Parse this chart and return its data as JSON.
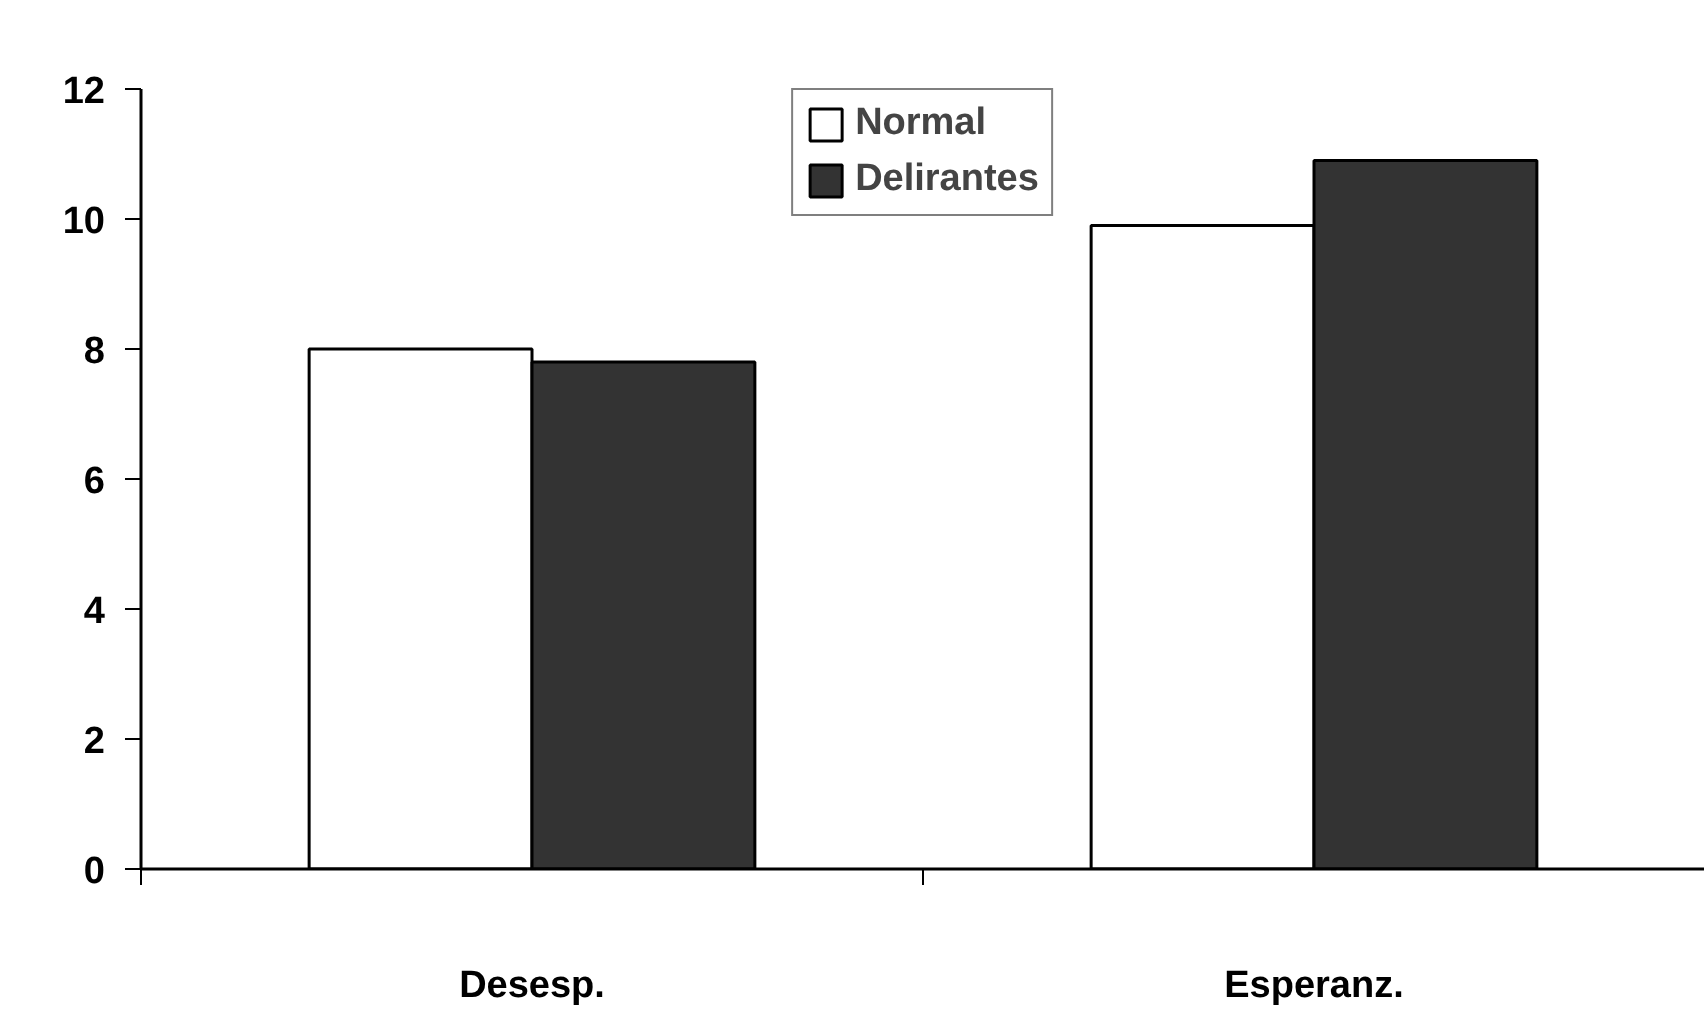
{
  "chart_data": {
    "type": "bar",
    "categories": [
      "Desesp.",
      "Esperanz."
    ],
    "series": [
      {
        "name": "Normal",
        "color": "#ffffff",
        "values": [
          8.0,
          9.9
        ]
      },
      {
        "name": "Delirantes",
        "color": "#333333",
        "values": [
          7.8,
          10.9
        ]
      }
    ],
    "ylim": [
      0,
      12
    ],
    "yticks": [
      0,
      2,
      4,
      6,
      8,
      10,
      12
    ],
    "grid": false,
    "legend": "top"
  }
}
